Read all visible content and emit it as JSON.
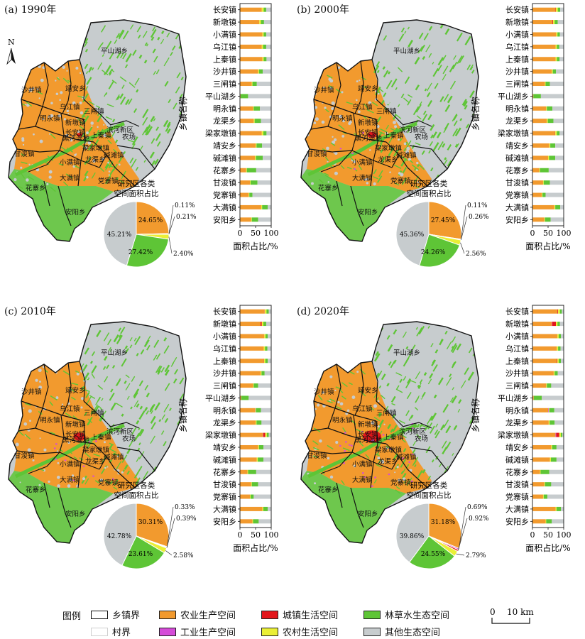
{
  "colors": {
    "agri": "#f29a2e",
    "industry": "#d54bd8",
    "urban": "#e3161b",
    "rural": "#eaef36",
    "eco": "#5ec536",
    "other": "#c7ccce",
    "boundary": "#111111",
    "village": "#e9e9e9"
  },
  "common": {
    "y_axis_label": "乡镇名称",
    "x_axis_label": "面积占比/%",
    "x_ticks": [
      "0",
      "50",
      "100"
    ],
    "pie_title_line1": "研究区各类",
    "pie_title_line2": "空间面积占比",
    "townships": [
      "长安镇",
      "新墩镇",
      "小满镇",
      "乌江镇",
      "上秦镇",
      "沙井镇",
      "三闸镇",
      "平山湖乡",
      "明永镇",
      "龙渠乡",
      "梁家墩镇",
      "靖安乡",
      "碱滩镇",
      "花寨乡",
      "甘浚镇",
      "党寨镇",
      "大满镇",
      "安阳乡"
    ],
    "map_labels": [
      {
        "text": "平山湖乡"
      },
      {
        "text": "沙井镇"
      },
      {
        "text": "靖安乡"
      },
      {
        "text": "乌江镇"
      },
      {
        "text": "三闸镇"
      },
      {
        "text": "明永镇"
      },
      {
        "text": "新墩镇"
      },
      {
        "text": "长安镇"
      },
      {
        "text": "上秦镇"
      },
      {
        "text": "梁家墩镇"
      },
      {
        "text": "农场"
      },
      {
        "text": "甘浚镇"
      },
      {
        "text": "碱滩镇"
      },
      {
        "text": "小满镇"
      },
      {
        "text": "龙渠乡"
      },
      {
        "text": "大满镇"
      },
      {
        "text": "党寨镇"
      },
      {
        "text": "花寨乡"
      },
      {
        "text": "安阳乡"
      },
      {
        "text": "黑河湿地"
      },
      {
        "text": "滨河新区"
      }
    ],
    "north_label": "N"
  },
  "panels": [
    {
      "label": "(a) 1990年",
      "pie": {
        "values": [
          24.65,
          0.11,
          0.21,
          2.4,
          27.42,
          45.21
        ],
        "labels": [
          "24.65%",
          "0.11%",
          "0.21%",
          "2.40%",
          "27.42%",
          "45.21%"
        ]
      },
      "bars": [
        [
          70,
          0,
          0,
          6,
          8,
          16
        ],
        [
          62,
          0,
          0,
          5,
          10,
          23
        ],
        [
          72,
          0,
          0,
          4,
          8,
          16
        ],
        [
          70,
          0,
          0,
          4,
          10,
          16
        ],
        [
          72,
          0,
          0,
          4,
          9,
          15
        ],
        [
          58,
          0,
          0,
          3,
          12,
          27
        ],
        [
          38,
          0,
          0,
          2,
          14,
          46
        ],
        [
          2,
          0,
          0,
          0,
          24,
          74
        ],
        [
          42,
          0,
          0,
          2,
          20,
          36
        ],
        [
          44,
          0,
          0,
          3,
          20,
          33
        ],
        [
          70,
          0,
          0,
          5,
          10,
          15
        ],
        [
          50,
          0,
          0,
          3,
          18,
          29
        ],
        [
          48,
          0,
          0,
          3,
          22,
          27
        ],
        [
          20,
          0,
          0,
          2,
          30,
          48
        ],
        [
          32,
          0,
          0,
          2,
          22,
          44
        ],
        [
          28,
          0,
          0,
          2,
          10,
          60
        ],
        [
          68,
          0,
          0,
          3,
          18,
          11
        ],
        [
          36,
          0,
          0,
          2,
          20,
          42
        ]
      ]
    },
    {
      "label": "(b) 2000年",
      "pie": {
        "values": [
          27.45,
          0.11,
          0.26,
          2.56,
          24.26,
          45.36
        ],
        "labels": [
          "27.45%",
          "0.11%",
          "0.26%",
          "2.56%",
          "24.26%",
          "45.36%"
        ]
      },
      "bars": [
        [
          74,
          0,
          1,
          6,
          8,
          11
        ],
        [
          64,
          0,
          2,
          5,
          10,
          19
        ],
        [
          76,
          0,
          0,
          4,
          8,
          12
        ],
        [
          74,
          0,
          0,
          4,
          8,
          14
        ],
        [
          74,
          0,
          0,
          4,
          9,
          13
        ],
        [
          62,
          0,
          0,
          3,
          10,
          25
        ],
        [
          40,
          0,
          0,
          2,
          14,
          44
        ],
        [
          3,
          0,
          0,
          0,
          24,
          73
        ],
        [
          44,
          0,
          0,
          2,
          18,
          36
        ],
        [
          46,
          0,
          0,
          3,
          18,
          33
        ],
        [
          72,
          0,
          1,
          5,
          9,
          13
        ],
        [
          54,
          0,
          0,
          3,
          16,
          27
        ],
        [
          50,
          0,
          0,
          3,
          20,
          27
        ],
        [
          22,
          0,
          0,
          2,
          28,
          48
        ],
        [
          34,
          0,
          0,
          2,
          20,
          44
        ],
        [
          30,
          0,
          0,
          2,
          10,
          58
        ],
        [
          70,
          0,
          0,
          3,
          16,
          11
        ],
        [
          38,
          0,
          0,
          2,
          18,
          42
        ]
      ]
    },
    {
      "label": "(c) 2010年",
      "pie": {
        "values": [
          30.31,
          0.33,
          0.39,
          2.58,
          23.61,
          42.78
        ],
        "labels": [
          "30.31%",
          "0.33%",
          "0.39%",
          "2.58%",
          "23.61%",
          "42.78%"
        ]
      },
      "bars": [
        [
          78,
          0,
          1,
          6,
          7,
          8
        ],
        [
          66,
          0,
          4,
          5,
          9,
          16
        ],
        [
          78,
          0,
          0,
          4,
          7,
          11
        ],
        [
          76,
          0,
          0,
          4,
          8,
          12
        ],
        [
          76,
          0,
          1,
          4,
          8,
          11
        ],
        [
          66,
          0,
          0,
          3,
          10,
          21
        ],
        [
          42,
          0,
          0,
          2,
          14,
          42
        ],
        [
          4,
          0,
          0,
          0,
          24,
          72
        ],
        [
          48,
          1,
          0,
          2,
          16,
          33
        ],
        [
          50,
          0,
          0,
          3,
          16,
          31
        ],
        [
          74,
          1,
          6,
          5,
          6,
          8
        ],
        [
          58,
          0,
          0,
          3,
          14,
          25
        ],
        [
          54,
          0,
          0,
          3,
          18,
          25
        ],
        [
          24,
          0,
          0,
          2,
          26,
          48
        ],
        [
          36,
          0,
          0,
          2,
          20,
          42
        ],
        [
          32,
          0,
          0,
          2,
          10,
          56
        ],
        [
          72,
          0,
          0,
          3,
          14,
          11
        ],
        [
          40,
          0,
          0,
          2,
          18,
          40
        ]
      ]
    },
    {
      "label": "(d) 2020年",
      "pie": {
        "values": [
          31.18,
          0.69,
          0.92,
          2.79,
          24.55,
          39.86
        ],
        "labels": [
          "31.18%",
          "0.69%",
          "0.92%",
          "2.79%",
          "24.55%",
          "39.86%"
        ]
      },
      "bars": [
        [
          80,
          0,
          2,
          6,
          6,
          6
        ],
        [
          62,
          1,
          12,
          5,
          8,
          12
        ],
        [
          80,
          0,
          0,
          4,
          7,
          9
        ],
        [
          78,
          0,
          0,
          4,
          8,
          10
        ],
        [
          78,
          0,
          2,
          4,
          7,
          9
        ],
        [
          68,
          0,
          0,
          3,
          10,
          19
        ],
        [
          44,
          0,
          0,
          2,
          14,
          40
        ],
        [
          4,
          0,
          0,
          0,
          26,
          70
        ],
        [
          50,
          2,
          0,
          2,
          16,
          30
        ],
        [
          52,
          0,
          0,
          3,
          16,
          29
        ],
        [
          74,
          2,
          10,
          5,
          5,
          4
        ],
        [
          60,
          0,
          0,
          3,
          14,
          23
        ],
        [
          56,
          0,
          0,
          3,
          18,
          23
        ],
        [
          24,
          0,
          0,
          2,
          28,
          46
        ],
        [
          38,
          0,
          0,
          2,
          20,
          40
        ],
        [
          34,
          0,
          0,
          2,
          12,
          52
        ],
        [
          74,
          0,
          0,
          3,
          14,
          9
        ],
        [
          42,
          0,
          0,
          2,
          18,
          38
        ]
      ]
    }
  ],
  "legend": {
    "title": "图例",
    "items": [
      {
        "key": "boundary",
        "label": "乡镇界",
        "kind": "outline"
      },
      {
        "key": "village",
        "label": "村界",
        "kind": "line"
      },
      {
        "key": "agri",
        "label": "农业生产空间",
        "kind": "fill"
      },
      {
        "key": "industry",
        "label": "工业生产空间",
        "kind": "fill"
      },
      {
        "key": "urban",
        "label": "城镇生活空间",
        "kind": "fill"
      },
      {
        "key": "rural",
        "label": "农村生活空间",
        "kind": "fill"
      },
      {
        "key": "eco",
        "label": "林草水生态空间",
        "kind": "fill"
      },
      {
        "key": "other",
        "label": "其他生态空间",
        "kind": "fill"
      }
    ],
    "scale": {
      "start": "0",
      "end": "10 km"
    }
  }
}
